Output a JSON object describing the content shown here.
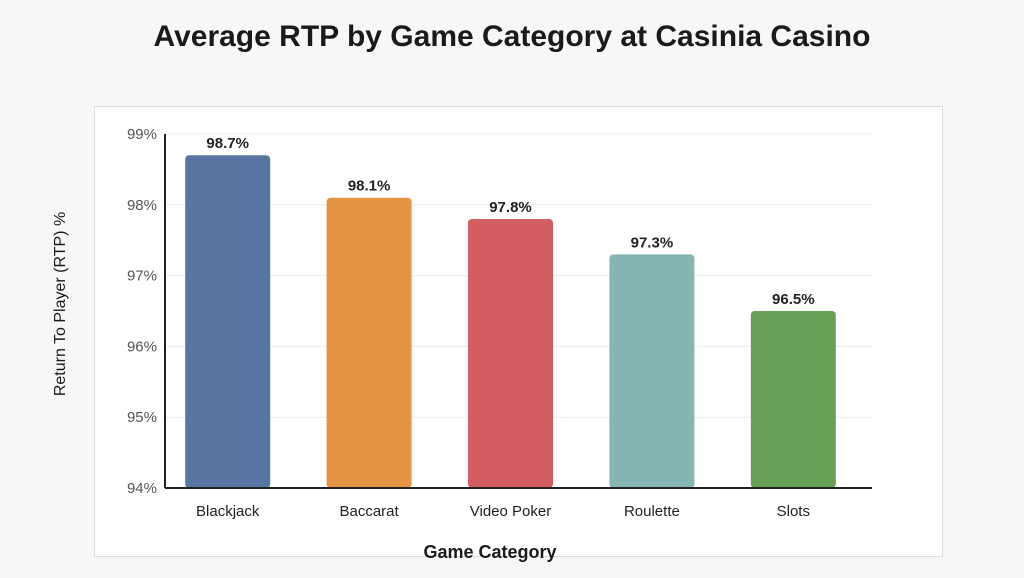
{
  "chart_data": {
    "type": "bar",
    "title": "Average RTP by Game Category at Casinia Casino",
    "xlabel": "Game Category",
    "ylabel": "Return To Player (RTP) %",
    "categories": [
      "Blackjack",
      "Baccarat",
      "Video Poker",
      "Roulette",
      "Slots"
    ],
    "values": [
      98.7,
      98.1,
      97.8,
      97.3,
      96.5
    ],
    "value_labels": [
      "98.7%",
      "98.1%",
      "97.8%",
      "97.3%",
      "96.5%"
    ],
    "colors": [
      "#5876a2",
      "#e59443",
      "#d45e5f",
      "#85b6b3",
      "#679f55"
    ],
    "ylim": [
      94,
      99
    ],
    "yticks": [
      94,
      95,
      96,
      97,
      98,
      99
    ],
    "ytick_labels": [
      "94%",
      "95%",
      "96%",
      "97%",
      "98%",
      "99%"
    ],
    "grid": true,
    "legend": "none"
  }
}
